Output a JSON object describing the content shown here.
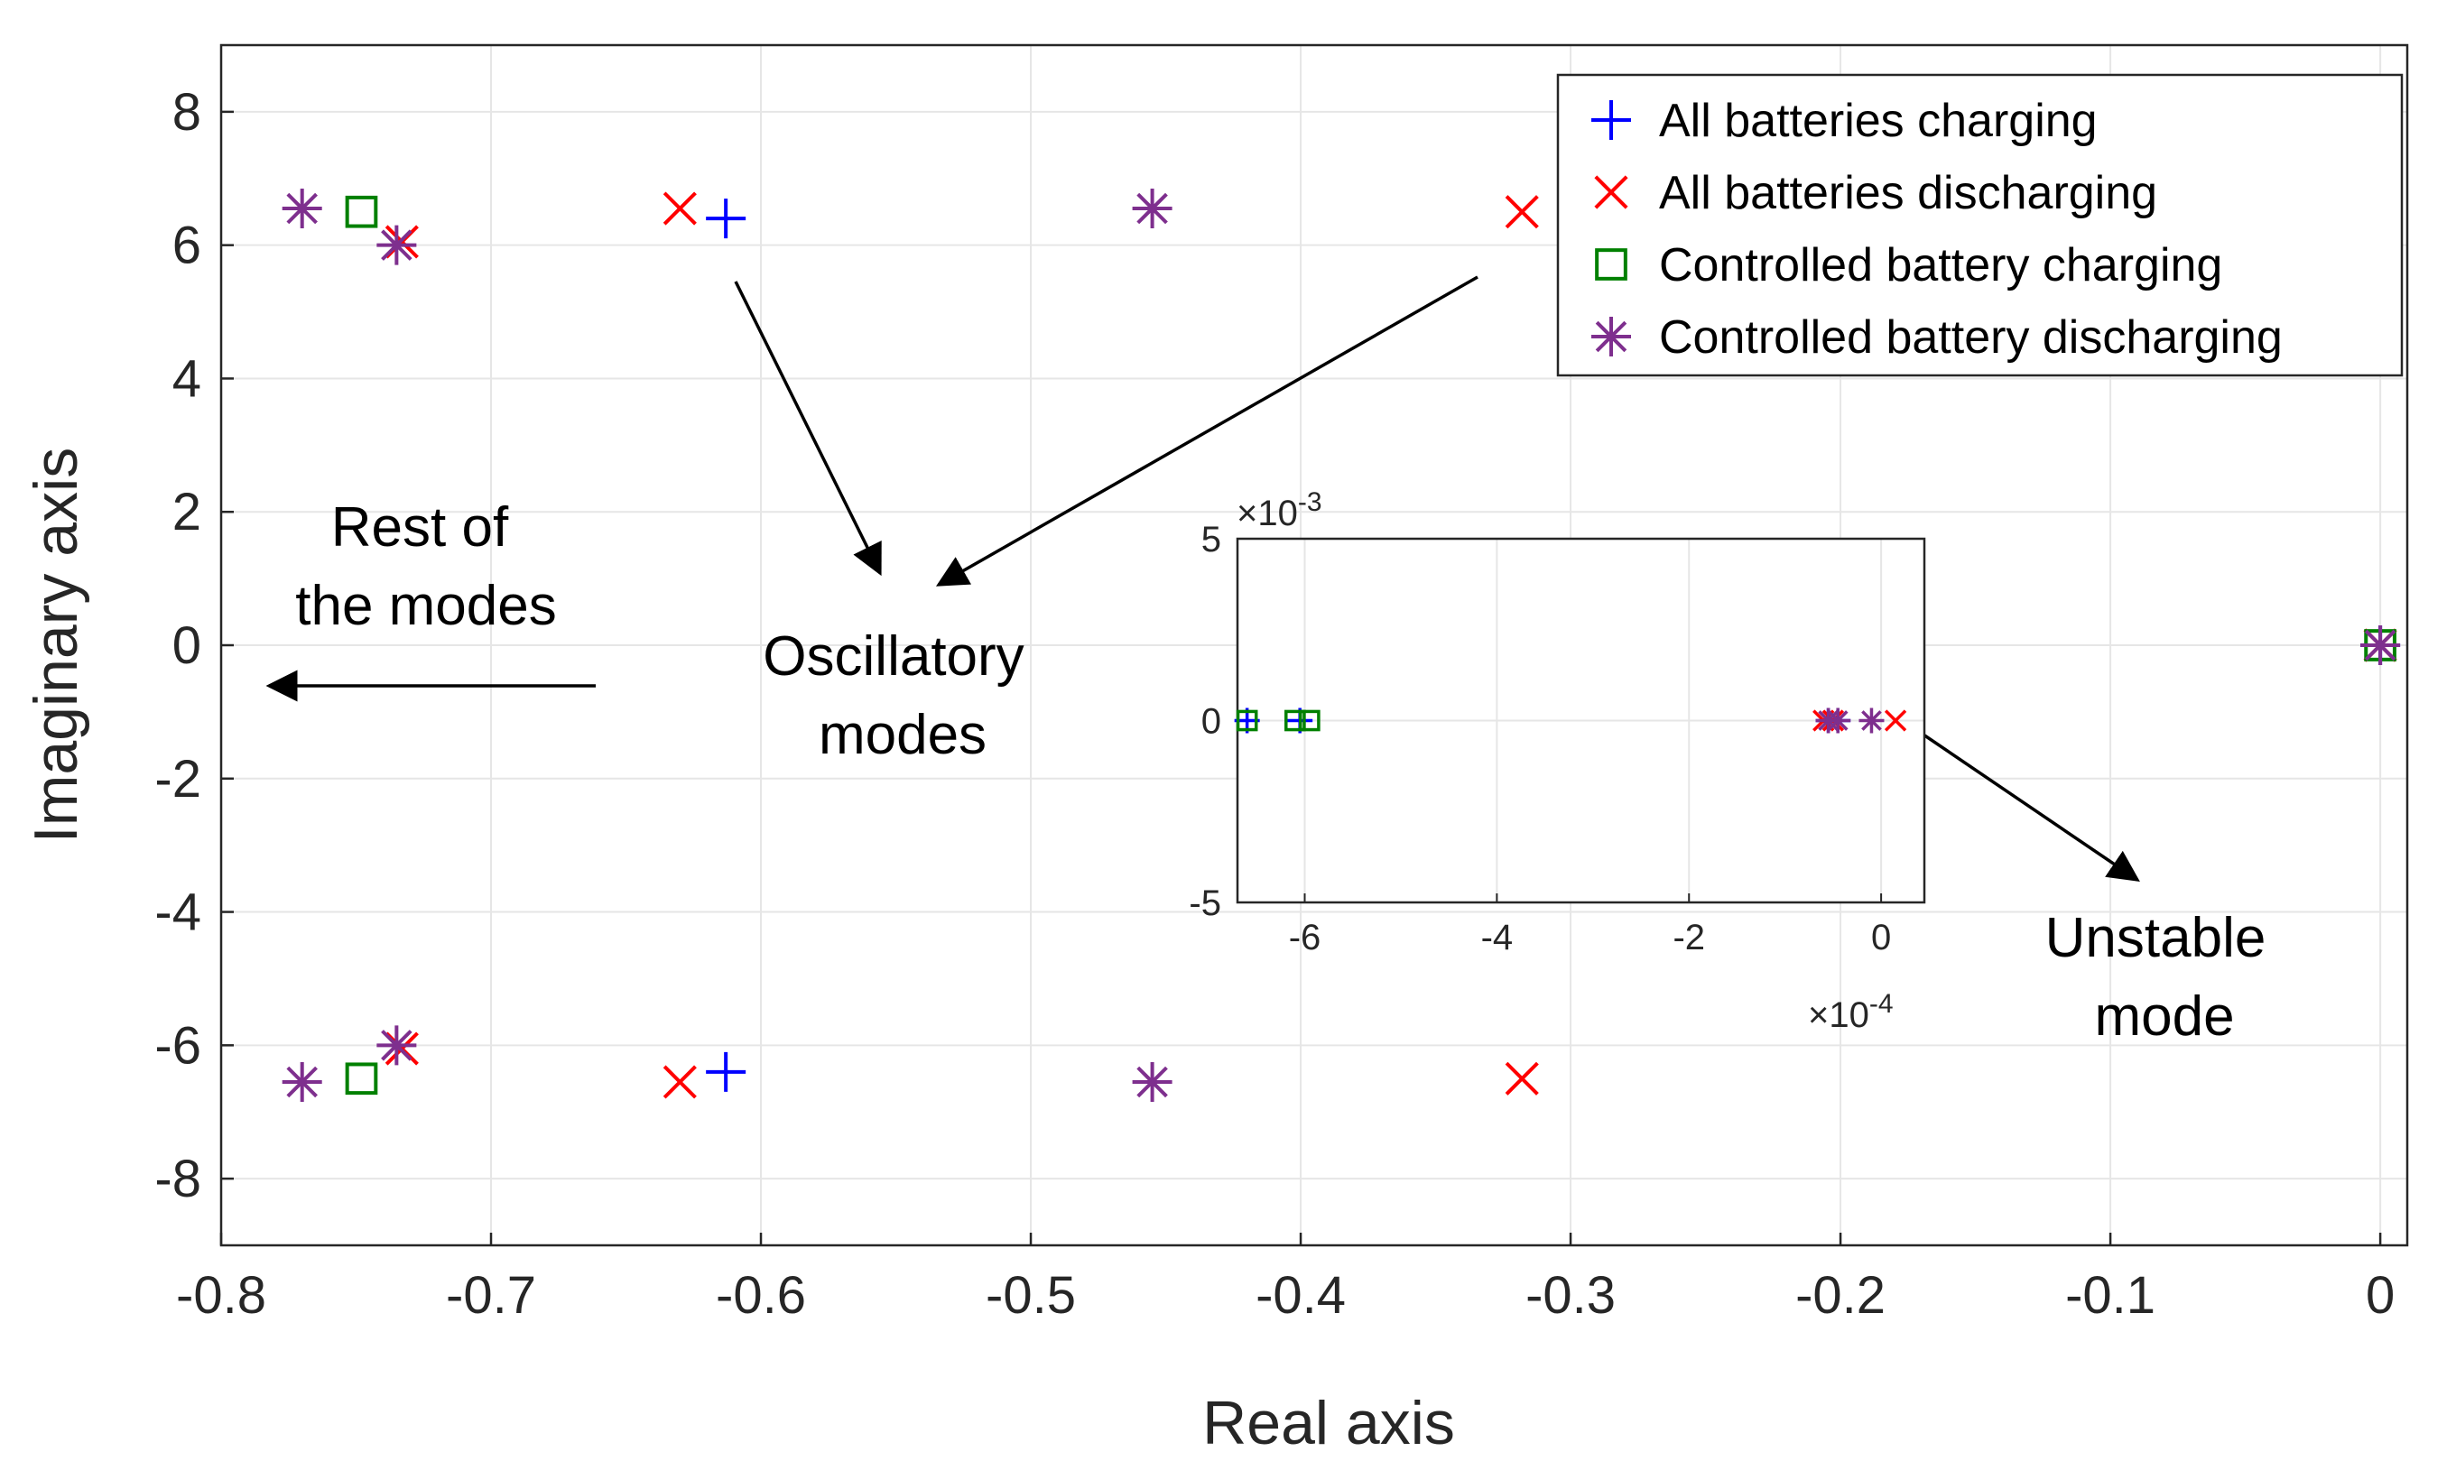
{
  "chart_data": {
    "type": "scatter",
    "title": "",
    "xlabel": "Real axis",
    "ylabel": "Imaginary axis",
    "xlim": [
      -0.8,
      0.01
    ],
    "ylim": [
      -9,
      9
    ],
    "xticks": [
      "-0.8",
      "-0.7",
      "-0.6",
      "-0.5",
      "-0.4",
      "-0.3",
      "-0.2",
      "-0.1",
      "0"
    ],
    "xtick_values": [
      -0.8,
      -0.7,
      -0.6,
      -0.5,
      -0.4,
      -0.3,
      -0.2,
      -0.1,
      0
    ],
    "yticks": [
      "8",
      "6",
      "4",
      "2",
      "0",
      "-2",
      "-4",
      "-6",
      "-8"
    ],
    "ytick_values": [
      8,
      6,
      4,
      2,
      0,
      -2,
      -4,
      -6,
      -8
    ],
    "grid": true,
    "legend_position": "top-right",
    "series": [
      {
        "name": "All batteries charging",
        "marker": "plus",
        "color": "#0000ff",
        "points": [
          [
            -0.613,
            6.4
          ],
          [
            -0.613,
            -6.4
          ],
          [
            0,
            0
          ]
        ]
      },
      {
        "name": "All batteries discharging",
        "marker": "x",
        "color": "#ff0000",
        "points": [
          [
            -0.63,
            6.55
          ],
          [
            -0.63,
            -6.55
          ],
          [
            -0.733,
            6.05
          ],
          [
            -0.733,
            -6.05
          ],
          [
            -0.318,
            6.5
          ],
          [
            -0.318,
            -6.5
          ],
          [
            0,
            0
          ]
        ]
      },
      {
        "name": "Controlled battery charging",
        "marker": "square",
        "color": "#008000",
        "points": [
          [
            -0.748,
            6.5
          ],
          [
            -0.748,
            -6.5
          ],
          [
            0,
            0
          ]
        ]
      },
      {
        "name": "Controlled battery discharging",
        "marker": "asterisk",
        "color": "#7e2f8e",
        "points": [
          [
            -0.77,
            6.55
          ],
          [
            -0.77,
            -6.55
          ],
          [
            -0.735,
            6.0
          ],
          [
            -0.735,
            -6.0
          ],
          [
            -0.455,
            6.55
          ],
          [
            -0.455,
            -6.55
          ],
          [
            0,
            0
          ]
        ]
      }
    ],
    "inset": {
      "xlim": [
        -6.7,
        0.45
      ],
      "ylim": [
        -5,
        5
      ],
      "xticks": [
        "-6",
        "-4",
        "-2",
        "0"
      ],
      "xtick_values": [
        -6,
        -4,
        -2,
        0
      ],
      "yticks": [
        "5",
        "0",
        "-5"
      ],
      "ytick_values": [
        5,
        0,
        -5
      ],
      "x_multiplier": "×10-4",
      "x_multiplier_base": "×10",
      "x_multiplier_exp": "-4",
      "y_multiplier": "×10-3",
      "y_multiplier_base": "×10",
      "y_multiplier_exp": "-3",
      "series": [
        {
          "name": "All batteries charging",
          "marker": "plus",
          "color": "#0000ff",
          "points": [
            [
              -6.6,
              0
            ],
            [
              -6.05,
              0
            ],
            [
              -0.55,
              0
            ],
            [
              -0.45,
              0
            ]
          ]
        },
        {
          "name": "All batteries discharging",
          "marker": "x",
          "color": "#ff0000",
          "points": [
            [
              -0.6,
              0
            ],
            [
              -0.5,
              0
            ],
            [
              0.15,
              0
            ]
          ]
        },
        {
          "name": "Controlled battery charging",
          "marker": "square",
          "color": "#008000",
          "points": [
            [
              -6.6,
              0
            ],
            [
              -6.1,
              0
            ],
            [
              -5.95,
              0
            ]
          ]
        },
        {
          "name": "Controlled battery discharging",
          "marker": "asterisk",
          "color": "#7e2f8e",
          "points": [
            [
              -0.55,
              0
            ],
            [
              -0.45,
              0
            ],
            [
              -0.1,
              0
            ]
          ]
        }
      ]
    },
    "annotations": {
      "rest_line1": "Rest of",
      "rest_line2": "the modes",
      "osc_line1": "Oscillatory",
      "osc_line2": "modes",
      "unstable_line1": "Unstable",
      "unstable_line2": "mode"
    }
  }
}
